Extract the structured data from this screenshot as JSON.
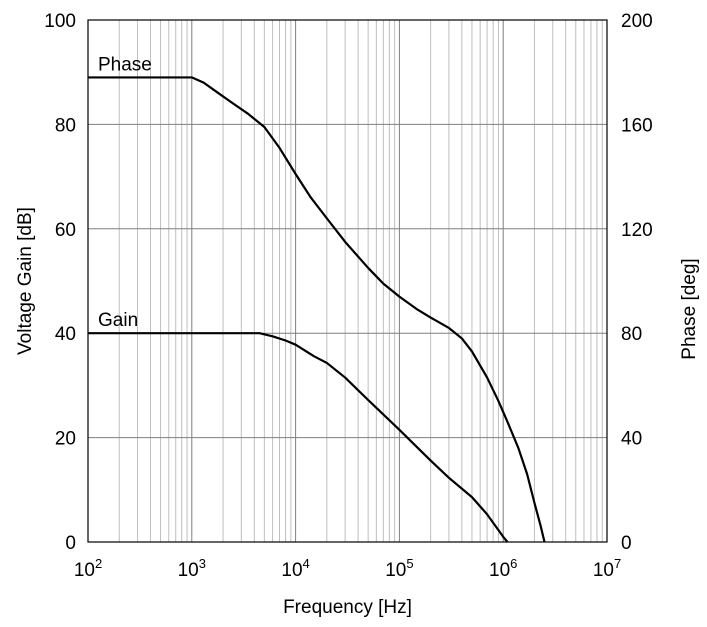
{
  "chart_data": {
    "type": "line",
    "x_scale": "log",
    "xlim": [
      100,
      10000000
    ],
    "xlabel": "Frequency [Hz]",
    "x_ticks": [
      {
        "value": 100,
        "base": "10",
        "exp": "2"
      },
      {
        "value": 1000,
        "base": "10",
        "exp": "3"
      },
      {
        "value": 10000,
        "base": "10",
        "exp": "4"
      },
      {
        "value": 100000,
        "base": "10",
        "exp": "5"
      },
      {
        "value": 1000000,
        "base": "10",
        "exp": "6"
      },
      {
        "value": 10000000,
        "base": "10",
        "exp": "7"
      }
    ],
    "ylabel_left": "Voltage Gain [dB]",
    "ylim_left": [
      0,
      100
    ],
    "y_ticks_left": [
      "0",
      "20",
      "40",
      "60",
      "80",
      "100"
    ],
    "ylabel_right": "Phase [deg]",
    "ylim_right": [
      0,
      200
    ],
    "y_ticks_right": [
      "0",
      "40",
      "80",
      "120",
      "160",
      "200"
    ],
    "grid": true,
    "legend": "none",
    "series": [
      {
        "name": "Phase",
        "axis": "right",
        "points": [
          [
            100,
            178
          ],
          [
            1000,
            178
          ],
          [
            1300,
            176
          ],
          [
            1800,
            172
          ],
          [
            2500,
            168
          ],
          [
            3500,
            164
          ],
          [
            5000,
            159
          ],
          [
            7000,
            151
          ],
          [
            10000,
            141
          ],
          [
            14000,
            132
          ],
          [
            20000,
            124
          ],
          [
            30000,
            115
          ],
          [
            50000,
            105
          ],
          [
            70000,
            99
          ],
          [
            100000,
            94
          ],
          [
            150000,
            89
          ],
          [
            200000,
            86
          ],
          [
            300000,
            82
          ],
          [
            400000,
            78
          ],
          [
            500000,
            73
          ],
          [
            700000,
            63
          ],
          [
            900000,
            54
          ],
          [
            1100000,
            46
          ],
          [
            1400000,
            36
          ],
          [
            1700000,
            26
          ],
          [
            2000000,
            15
          ],
          [
            2300000,
            6
          ],
          [
            2500000,
            0
          ]
        ]
      },
      {
        "name": "Gain",
        "axis": "left",
        "points": [
          [
            100,
            40
          ],
          [
            1000,
            40
          ],
          [
            3000,
            40
          ],
          [
            4500,
            40
          ],
          [
            6000,
            39.4
          ],
          [
            8000,
            38.6
          ],
          [
            10000,
            37.8
          ],
          [
            15000,
            35.6
          ],
          [
            20000,
            34.3
          ],
          [
            30000,
            31.5
          ],
          [
            50000,
            27.2
          ],
          [
            100000,
            21.5
          ],
          [
            200000,
            15.6
          ],
          [
            300000,
            12.3
          ],
          [
            500000,
            8.6
          ],
          [
            700000,
            5.3
          ],
          [
            1000000,
            1.0
          ],
          [
            1100000,
            0
          ]
        ]
      }
    ]
  }
}
